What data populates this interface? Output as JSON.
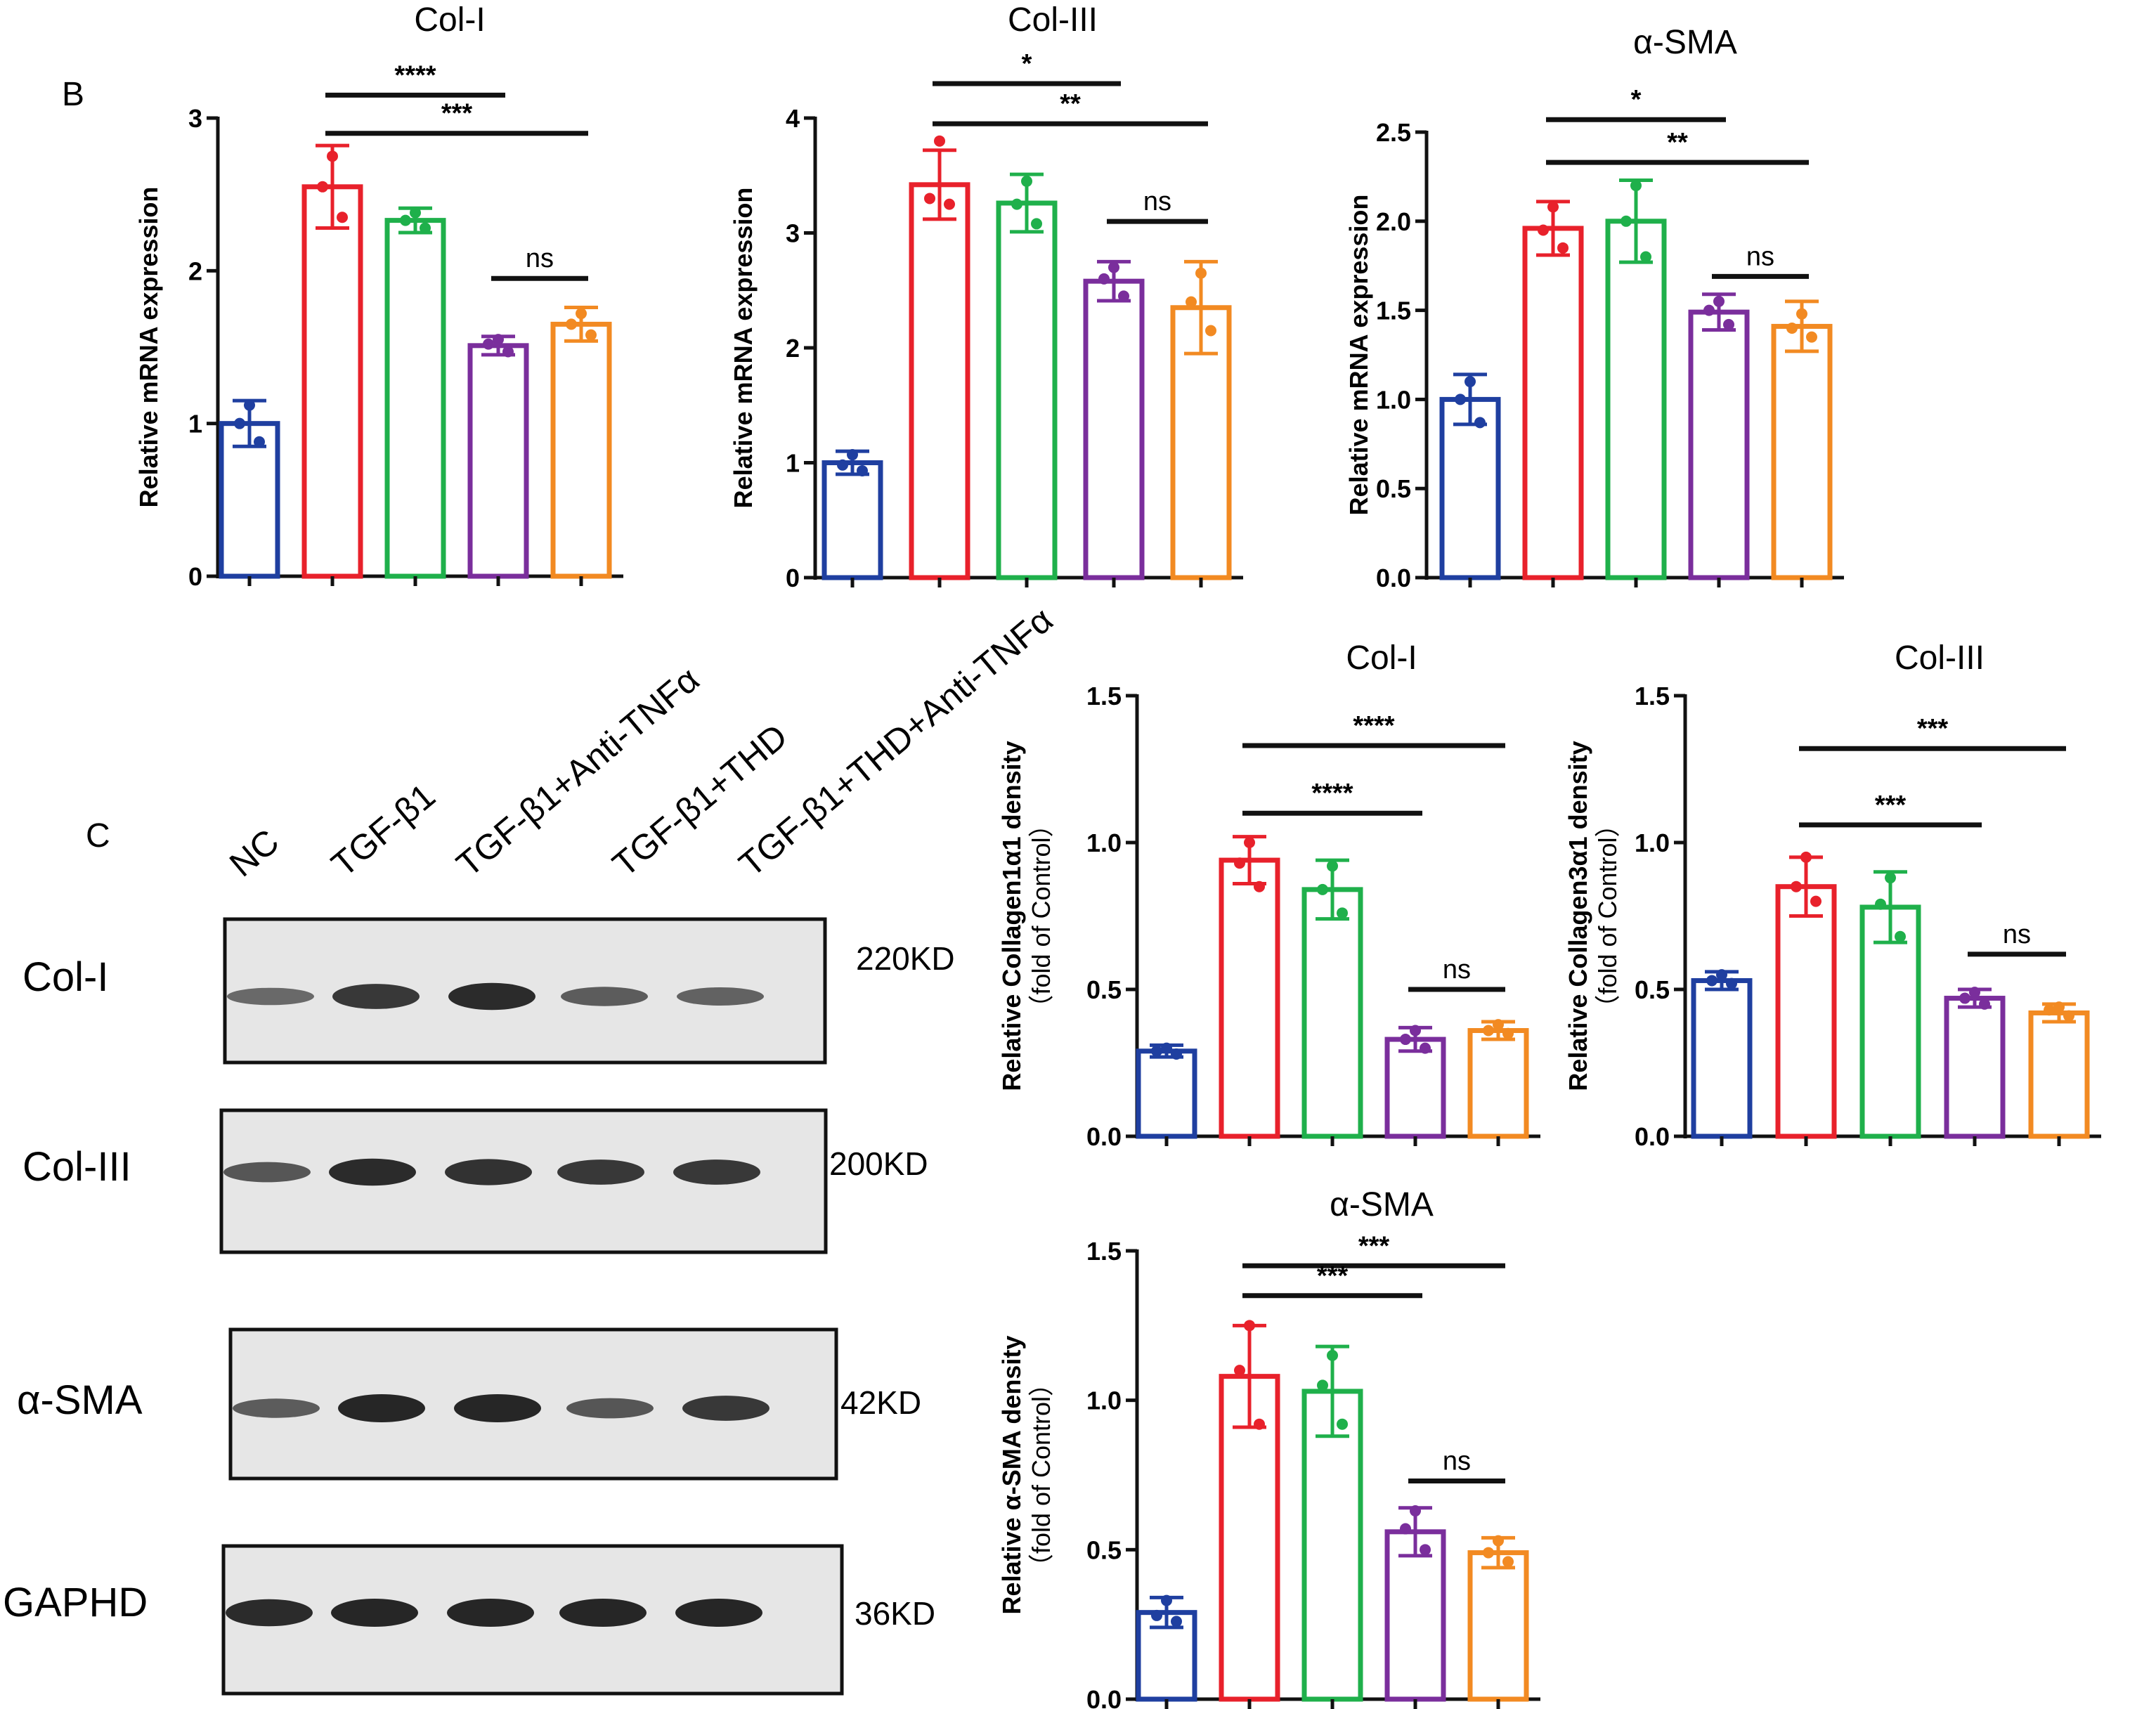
{
  "panel_labels": {
    "B": "B",
    "C": "C"
  },
  "colors": {
    "groups": [
      "#1f3fa0",
      "#e8212b",
      "#1fb04b",
      "#7a2e9c",
      "#f28a22"
    ],
    "axis": "#111111",
    "blot_bg": "#e6e6e6",
    "band": "#1b1b1b"
  },
  "lanes": [
    "NC",
    "TGF-β1",
    "TGF-β1+Anti-TNFα",
    "TGF-β1+THD",
    "TGF-β1+THD+Anti-TNFα"
  ],
  "blot": {
    "rows": [
      {
        "name": "Col-I",
        "kd": "220KD",
        "band_intensity": [
          0.45,
          0.85,
          0.95,
          0.55,
          0.5
        ]
      },
      {
        "name": "Col-III",
        "kd": "200KD",
        "band_intensity": [
          0.6,
          0.95,
          0.9,
          0.85,
          0.85
        ]
      },
      {
        "name": "α-SMA",
        "kd": "42KD",
        "band_intensity": [
          0.55,
          1.0,
          1.0,
          0.6,
          0.85
        ]
      },
      {
        "name": "GAPHD",
        "kd": "36KD",
        "band_intensity": [
          0.95,
          1.0,
          1.0,
          1.0,
          1.0
        ]
      }
    ]
  },
  "chart_data": [
    {
      "type": "bar",
      "title": "Col-I",
      "ylabel": "Relative mRNA expression",
      "ylabel2": "",
      "ylim": [
        0,
        3
      ],
      "yticks": [
        "0",
        "1",
        "2",
        "3"
      ],
      "yticks_values": [
        0,
        1,
        2,
        3
      ],
      "values": [
        1.0,
        2.55,
        2.33,
        1.51,
        1.65
      ],
      "errors": [
        0.15,
        0.27,
        0.08,
        0.06,
        0.11
      ],
      "points": [
        [
          1.12,
          1.0,
          0.88
        ],
        [
          2.75,
          2.55,
          2.35
        ],
        [
          2.38,
          2.33,
          2.28
        ],
        [
          1.55,
          1.52,
          1.47
        ],
        [
          1.72,
          1.65,
          1.58
        ]
      ],
      "comparisons": [
        {
          "from": 1,
          "to": 3,
          "label": "****",
          "y": 3.15
        },
        {
          "from": 1,
          "to": 4,
          "label": "***",
          "y": 2.9
        },
        {
          "from": 3,
          "to": 4,
          "label": "ns",
          "y": 1.95
        }
      ]
    },
    {
      "type": "bar",
      "title": "Col-III",
      "ylabel": "Relative mRNA expression",
      "ylabel2": "",
      "ylim": [
        0,
        4
      ],
      "yticks": [
        "0",
        "1",
        "2",
        "3",
        "4"
      ],
      "yticks_values": [
        0,
        1,
        2,
        3,
        4
      ],
      "values": [
        1.0,
        3.42,
        3.26,
        2.58,
        2.35
      ],
      "errors": [
        0.1,
        0.3,
        0.25,
        0.17,
        0.4
      ],
      "points": [
        [
          1.07,
          0.98,
          0.93
        ],
        [
          3.8,
          3.3,
          3.25
        ],
        [
          3.45,
          3.25,
          3.08
        ],
        [
          2.7,
          2.6,
          2.45
        ],
        [
          2.65,
          2.4,
          2.15
        ]
      ],
      "comparisons": [
        {
          "from": 1,
          "to": 3,
          "label": "*",
          "y": 4.3
        },
        {
          "from": 1,
          "to": 4,
          "label": "**",
          "y": 3.95
        },
        {
          "from": 3,
          "to": 4,
          "label": "ns",
          "y": 3.1
        }
      ]
    },
    {
      "type": "bar",
      "title": "α-SMA",
      "ylabel": "Relative mRNA expression",
      "ylabel2": "",
      "ylim": [
        0,
        2.5
      ],
      "yticks": [
        "0.0",
        "0.5",
        "1.0",
        "1.5",
        "2.0",
        "2.5"
      ],
      "yticks_values": [
        0,
        0.5,
        1.0,
        1.5,
        2.0,
        2.5
      ],
      "values": [
        1.0,
        1.96,
        2.0,
        1.49,
        1.41
      ],
      "errors": [
        0.14,
        0.15,
        0.23,
        0.1,
        0.14
      ],
      "points": [
        [
          1.1,
          1.0,
          0.87
        ],
        [
          2.08,
          1.95,
          1.85
        ],
        [
          2.2,
          2.0,
          1.8
        ],
        [
          1.55,
          1.5,
          1.42
        ],
        [
          1.48,
          1.4,
          1.35
        ]
      ],
      "comparisons": [
        {
          "from": 1,
          "to": 3,
          "label": "*",
          "y": 2.57
        },
        {
          "from": 1,
          "to": 4,
          "label": "**",
          "y": 2.33
        },
        {
          "from": 3,
          "to": 4,
          "label": "ns",
          "y": 1.69
        }
      ]
    },
    {
      "type": "bar",
      "title": "Col-I",
      "ylabel": "Relative Collagen1α1 density",
      "ylabel2": "（fold of Control）",
      "ylim": [
        0,
        1.5
      ],
      "yticks": [
        "0.0",
        "0.5",
        "1.0",
        "1.5"
      ],
      "yticks_values": [
        0,
        0.5,
        1.0,
        1.5
      ],
      "values": [
        0.29,
        0.94,
        0.84,
        0.33,
        0.36
      ],
      "errors": [
        0.02,
        0.08,
        0.1,
        0.04,
        0.03
      ],
      "points": [
        [
          0.3,
          0.29,
          0.28
        ],
        [
          1.0,
          0.93,
          0.85
        ],
        [
          0.92,
          0.84,
          0.76
        ],
        [
          0.36,
          0.33,
          0.3
        ],
        [
          0.38,
          0.36,
          0.35
        ]
      ],
      "comparisons": [
        {
          "from": 1,
          "to": 4,
          "label": "****",
          "y": 1.33
        },
        {
          "from": 1,
          "to": 3,
          "label": "****",
          "y": 1.1
        },
        {
          "from": 3,
          "to": 4,
          "label": "ns",
          "y": 0.5
        }
      ]
    },
    {
      "type": "bar",
      "title": "Col-III",
      "ylabel": "Relative Collagen3α1 density",
      "ylabel2": "（fold of Control）",
      "ylim": [
        0,
        1.5
      ],
      "yticks": [
        "0.0",
        "0.5",
        "1.0",
        "1.5"
      ],
      "yticks_values": [
        0,
        0.5,
        1.0,
        1.5
      ],
      "values": [
        0.53,
        0.85,
        0.78,
        0.47,
        0.42
      ],
      "errors": [
        0.03,
        0.1,
        0.12,
        0.03,
        0.03
      ],
      "points": [
        [
          0.55,
          0.53,
          0.52
        ],
        [
          0.95,
          0.85,
          0.8
        ],
        [
          0.88,
          0.79,
          0.68
        ],
        [
          0.49,
          0.47,
          0.45
        ],
        [
          0.44,
          0.43,
          0.41
        ]
      ],
      "comparisons": [
        {
          "from": 1,
          "to": 4,
          "label": "***",
          "y": 1.32
        },
        {
          "from": 1,
          "to": 3,
          "label": "***",
          "y": 1.06
        },
        {
          "from": 3,
          "to": 4,
          "label": "ns",
          "y": 0.62
        }
      ]
    },
    {
      "type": "bar",
      "title": "α-SMA",
      "ylabel": "Relative α-SMA density",
      "ylabel2": "（fold of Control）",
      "ylim": [
        0,
        1.5
      ],
      "yticks": [
        "0.0",
        "0.5",
        "1.0",
        "1.5"
      ],
      "yticks_values": [
        0,
        0.5,
        1.0,
        1.5
      ],
      "values": [
        0.29,
        1.08,
        1.03,
        0.56,
        0.49
      ],
      "errors": [
        0.05,
        0.17,
        0.15,
        0.08,
        0.05
      ],
      "points": [
        [
          0.33,
          0.28,
          0.26
        ],
        [
          1.25,
          1.1,
          0.92
        ],
        [
          1.15,
          1.05,
          0.92
        ],
        [
          0.63,
          0.57,
          0.5
        ],
        [
          0.53,
          0.49,
          0.46
        ]
      ],
      "comparisons": [
        {
          "from": 1,
          "to": 4,
          "label": "***",
          "y": 1.45
        },
        {
          "from": 1,
          "to": 3,
          "label": "***",
          "y": 1.35
        },
        {
          "from": 3,
          "to": 4,
          "label": "ns",
          "y": 0.73
        }
      ]
    }
  ]
}
